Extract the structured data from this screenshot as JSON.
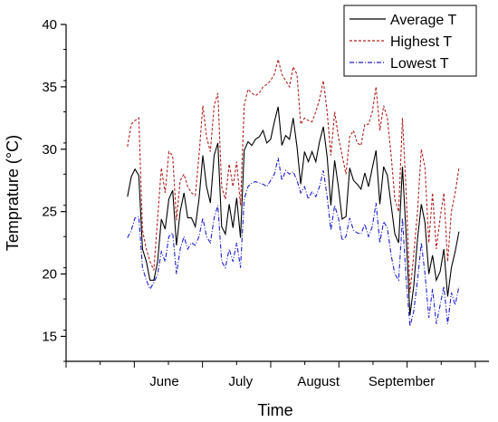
{
  "chart_data": {
    "type": "line",
    "xlabel": "Time",
    "ylabel": "Temprature (°C)",
    "ylim": [
      13,
      40
    ],
    "yticks": [
      15,
      20,
      25,
      30,
      35,
      40
    ],
    "x_ticklabels": [
      {
        "label": "June",
        "pos": 7.2
      },
      {
        "label": "July",
        "pos": 12.8
      },
      {
        "label": "August",
        "pos": 18.5
      },
      {
        "label": "September",
        "pos": 24.6
      }
    ],
    "xlim": [
      0,
      31
    ],
    "legend_position": "top-right",
    "series": [
      {
        "name": "Average T",
        "color": "#000000",
        "dash": "solid",
        "values": [
          26.2,
          27.8,
          28.4,
          27.9,
          22.0,
          21.0,
          19.5,
          19.5,
          21.0,
          24.4,
          23.6,
          26.0,
          26.7,
          22.3,
          25.0,
          26.5,
          24.5,
          24.5,
          23.8,
          26.0,
          29.5,
          27.0,
          25.7,
          29.5,
          30.5,
          23.8,
          23.2,
          25.6,
          23.7,
          26.1,
          22.9,
          29.9,
          30.6,
          30.3,
          30.8,
          31.0,
          31.5,
          30.5,
          30.8,
          32.2,
          33.4,
          30.3,
          31.1,
          30.8,
          32.5,
          30.2,
          27.2,
          29.8,
          29.0,
          29.8,
          29.0,
          30.6,
          31.8,
          29.4,
          25.5,
          29.1,
          27.0,
          24.4,
          24.6,
          28.5,
          27.5,
          27.2,
          26.8,
          28.1,
          27.0,
          28.5,
          29.9,
          25.6,
          28.6,
          27.9,
          25.5,
          23.2,
          22.5,
          28.6,
          23.0,
          16.7,
          19.0,
          22.8,
          25.6,
          24.1,
          20.0,
          21.5,
          19.5,
          20.2,
          22.0,
          18.2,
          20.5,
          21.8,
          23.4
        ]
      },
      {
        "name": "Highest T",
        "color": "#b22222",
        "dash": "dashed",
        "values": [
          30.2,
          32.0,
          32.3,
          32.5,
          23.5,
          22.0,
          21.0,
          20.3,
          24.5,
          28.5,
          26.5,
          29.8,
          29.5,
          24.3,
          27.5,
          28.0,
          27.0,
          26.5,
          26.3,
          29.5,
          33.5,
          31.0,
          29.8,
          33.5,
          34.5,
          27.0,
          26.0,
          28.8,
          27.0,
          29.0,
          25.5,
          33.5,
          34.8,
          34.5,
          34.3,
          34.5,
          35.0,
          35.2,
          35.5,
          36.0,
          37.2,
          36.0,
          35.5,
          35.0,
          36.6,
          36.0,
          32.0,
          32.5,
          32.3,
          32.2,
          33.0,
          34.0,
          35.5,
          33.0,
          29.5,
          33.0,
          31.0,
          29.5,
          28.0,
          31.0,
          31.5,
          30.5,
          30.3,
          32.0,
          32.0,
          33.0,
          35.0,
          31.5,
          33.5,
          32.5,
          29.5,
          26.0,
          25.0,
          32.5,
          26.5,
          18.5,
          21.5,
          25.0,
          30.0,
          28.5,
          22.5,
          26.5,
          22.0,
          24.5,
          26.5,
          21.0,
          25.0,
          26.5,
          28.5
        ]
      },
      {
        "name": "Lowest T",
        "color": "#1f1fcc",
        "dash": "dashdot",
        "values": [
          22.9,
          23.5,
          24.5,
          24.6,
          20.5,
          19.5,
          18.8,
          19.3,
          20.0,
          21.8,
          21.0,
          23.0,
          23.3,
          20.0,
          22.0,
          23.0,
          22.0,
          22.5,
          22.3,
          23.0,
          24.5,
          23.0,
          22.5,
          24.5,
          25.5,
          21.0,
          20.5,
          22.0,
          21.0,
          22.5,
          20.5,
          26.0,
          27.0,
          27.3,
          27.4,
          27.3,
          27.2,
          27.0,
          27.5,
          28.0,
          29.3,
          27.5,
          28.3,
          28.0,
          28.2,
          27.5,
          26.5,
          27.0,
          26.0,
          26.6,
          26.2,
          27.0,
          28.3,
          26.2,
          23.5,
          25.5,
          24.5,
          22.7,
          23.0,
          24.5,
          23.5,
          23.3,
          23.2,
          24.0,
          23.0,
          23.8,
          25.7,
          22.5,
          24.2,
          23.7,
          21.5,
          20.0,
          19.5,
          24.5,
          19.5,
          15.8,
          17.0,
          19.5,
          22.5,
          20.0,
          16.5,
          18.8,
          16.0,
          17.5,
          19.0,
          16.0,
          18.5,
          17.5,
          19.0
        ]
      }
    ]
  }
}
